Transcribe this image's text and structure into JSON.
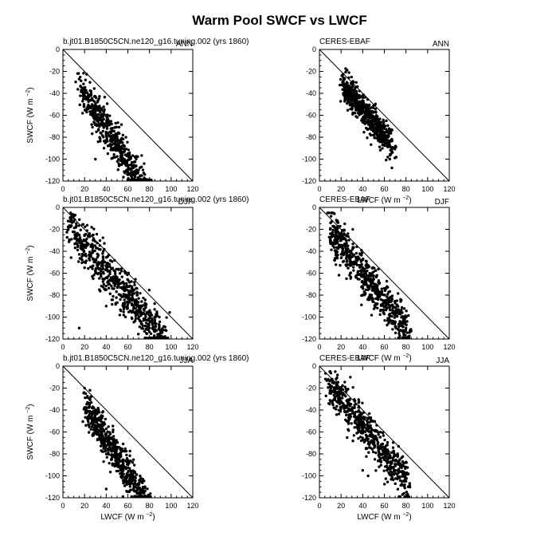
{
  "title": "Warm Pool SWCF vs LWCF",
  "x_label": "LWCF",
  "x_unit_text": "(W m",
  "y_label": "SWCF",
  "y_unit_text": "(W m",
  "unit_exponent": "−2",
  "unit_close": ")",
  "chart_data": [
    {
      "type": "scatter",
      "model": "b.jt01.B1850C5CN.ne120_g16.tuning.002 (yrs 1860)",
      "season": "ANN",
      "xlim": [
        0,
        120
      ],
      "ylim": [
        -120,
        0
      ],
      "x_ticks": [
        0,
        20,
        40,
        60,
        80,
        100,
        120
      ],
      "y_ticks": [
        0,
        -20,
        -40,
        -60,
        -80,
        -100,
        -120
      ],
      "cloud": {
        "x_range": [
          15,
          80
        ],
        "slope": -1.55,
        "intercept": -10,
        "spread": 9,
        "count": 600,
        "seed": 11
      },
      "points": [
        [
          17,
          -38
        ],
        [
          20,
          -42
        ],
        [
          25,
          -30
        ],
        [
          30,
          -43
        ],
        [
          35,
          -60
        ],
        [
          40,
          -60
        ],
        [
          45,
          -68
        ],
        [
          50,
          -80
        ],
        [
          55,
          -85
        ],
        [
          60,
          -95
        ],
        [
          65,
          -108
        ],
        [
          70,
          -110
        ],
        [
          75,
          -120
        ],
        [
          60,
          -112
        ],
        [
          30,
          -100
        ]
      ]
    },
    {
      "type": "scatter",
      "model": "CERES-EBAF",
      "season": "ANN",
      "xlim": [
        0,
        120
      ],
      "ylim": [
        -120,
        0
      ],
      "x_ticks": [
        0,
        20,
        40,
        60,
        80,
        100,
        120
      ],
      "y_ticks": [
        0,
        -20,
        -40,
        -60,
        -80,
        -100,
        -120
      ],
      "cloud": {
        "x_range": [
          22,
          68
        ],
        "slope": -1.25,
        "intercept": -5,
        "spread": 7,
        "count": 600,
        "seed": 23
      },
      "points": [
        [
          22,
          -33
        ],
        [
          30,
          -35
        ],
        [
          35,
          -48
        ],
        [
          40,
          -55
        ],
        [
          45,
          -60
        ],
        [
          50,
          -65
        ],
        [
          55,
          -70
        ],
        [
          60,
          -80
        ],
        [
          65,
          -100
        ],
        [
          67,
          -108
        ]
      ]
    },
    {
      "type": "scatter",
      "model": "b.jt01.B1850C5CN.ne120_g16.tuning.002 (yrs 1860)",
      "season": "DJF",
      "xlim": [
        0,
        120
      ],
      "ylim": [
        -120,
        0
      ],
      "x_ticks": [
        0,
        20,
        40,
        60,
        80,
        100,
        120
      ],
      "y_ticks": [
        0,
        -20,
        -40,
        -60,
        -80,
        -100,
        -120
      ],
      "cloud": {
        "x_range": [
          5,
          95
        ],
        "slope": -1.2,
        "intercept": -10,
        "spread": 10,
        "count": 650,
        "seed": 37
      },
      "points": [
        [
          5,
          -20
        ],
        [
          10,
          -13
        ],
        [
          20,
          -25
        ],
        [
          30,
          -60
        ],
        [
          40,
          -75
        ],
        [
          50,
          -65
        ],
        [
          60,
          -80
        ],
        [
          70,
          -95
        ],
        [
          80,
          -110
        ],
        [
          90,
          -118
        ],
        [
          95,
          -112
        ],
        [
          15,
          -110
        ],
        [
          40,
          -90
        ],
        [
          20,
          -55
        ]
      ]
    },
    {
      "type": "scatter",
      "model": "CERES-EBAF",
      "season": "DJF",
      "xlim": [
        0,
        120
      ],
      "ylim": [
        -120,
        0
      ],
      "x_ticks": [
        0,
        20,
        40,
        60,
        80,
        100,
        120
      ],
      "y_ticks": [
        0,
        -20,
        -40,
        -60,
        -80,
        -100,
        -120
      ],
      "cloud": {
        "x_range": [
          10,
          82
        ],
        "slope": -1.25,
        "intercept": -10,
        "spread": 10,
        "count": 650,
        "seed": 41
      },
      "points": [
        [
          10,
          -20
        ],
        [
          15,
          -25
        ],
        [
          20,
          -30
        ],
        [
          30,
          -45
        ],
        [
          40,
          -55
        ],
        [
          50,
          -65
        ],
        [
          60,
          -80
        ],
        [
          70,
          -95
        ],
        [
          80,
          -110
        ],
        [
          82,
          -118
        ],
        [
          25,
          -65
        ],
        [
          40,
          -80
        ]
      ]
    },
    {
      "type": "scatter",
      "model": "b.jt01.B1850C5CN.ne120_g16.tuning.002 (yrs 1860)",
      "season": "JJA",
      "xlim": [
        0,
        120
      ],
      "ylim": [
        -120,
        0
      ],
      "x_ticks": [
        0,
        20,
        40,
        60,
        80,
        100,
        120
      ],
      "y_ticks": [
        0,
        -20,
        -40,
        -60,
        -80,
        -100,
        -120
      ],
      "cloud": {
        "x_range": [
          20,
          78
        ],
        "slope": -1.55,
        "intercept": -5,
        "spread": 9,
        "count": 600,
        "seed": 53
      },
      "points": [
        [
          20,
          -20
        ],
        [
          25,
          -22
        ],
        [
          30,
          -40
        ],
        [
          35,
          -55
        ],
        [
          40,
          -65
        ],
        [
          45,
          -75
        ],
        [
          50,
          -85
        ],
        [
          55,
          -95
        ],
        [
          60,
          -105
        ],
        [
          65,
          -112
        ],
        [
          70,
          -120
        ],
        [
          40,
          -112
        ]
      ]
    },
    {
      "type": "scatter",
      "model": "CERES-EBAF",
      "season": "JJA",
      "xlim": [
        0,
        120
      ],
      "ylim": [
        -120,
        0
      ],
      "x_ticks": [
        0,
        20,
        40,
        60,
        80,
        100,
        120
      ],
      "y_ticks": [
        0,
        -20,
        -40,
        -60,
        -80,
        -100,
        -120
      ],
      "cloud": {
        "x_range": [
          8,
          82
        ],
        "slope": -1.25,
        "intercept": -5,
        "spread": 9,
        "count": 600,
        "seed": 67
      },
      "points": [
        [
          8,
          -12
        ],
        [
          12,
          -15
        ],
        [
          20,
          -25
        ],
        [
          30,
          -40
        ],
        [
          40,
          -55
        ],
        [
          50,
          -65
        ],
        [
          60,
          -80
        ],
        [
          70,
          -95
        ],
        [
          80,
          -105
        ],
        [
          82,
          -110
        ],
        [
          45,
          -100
        ],
        [
          40,
          -95
        ]
      ]
    }
  ]
}
